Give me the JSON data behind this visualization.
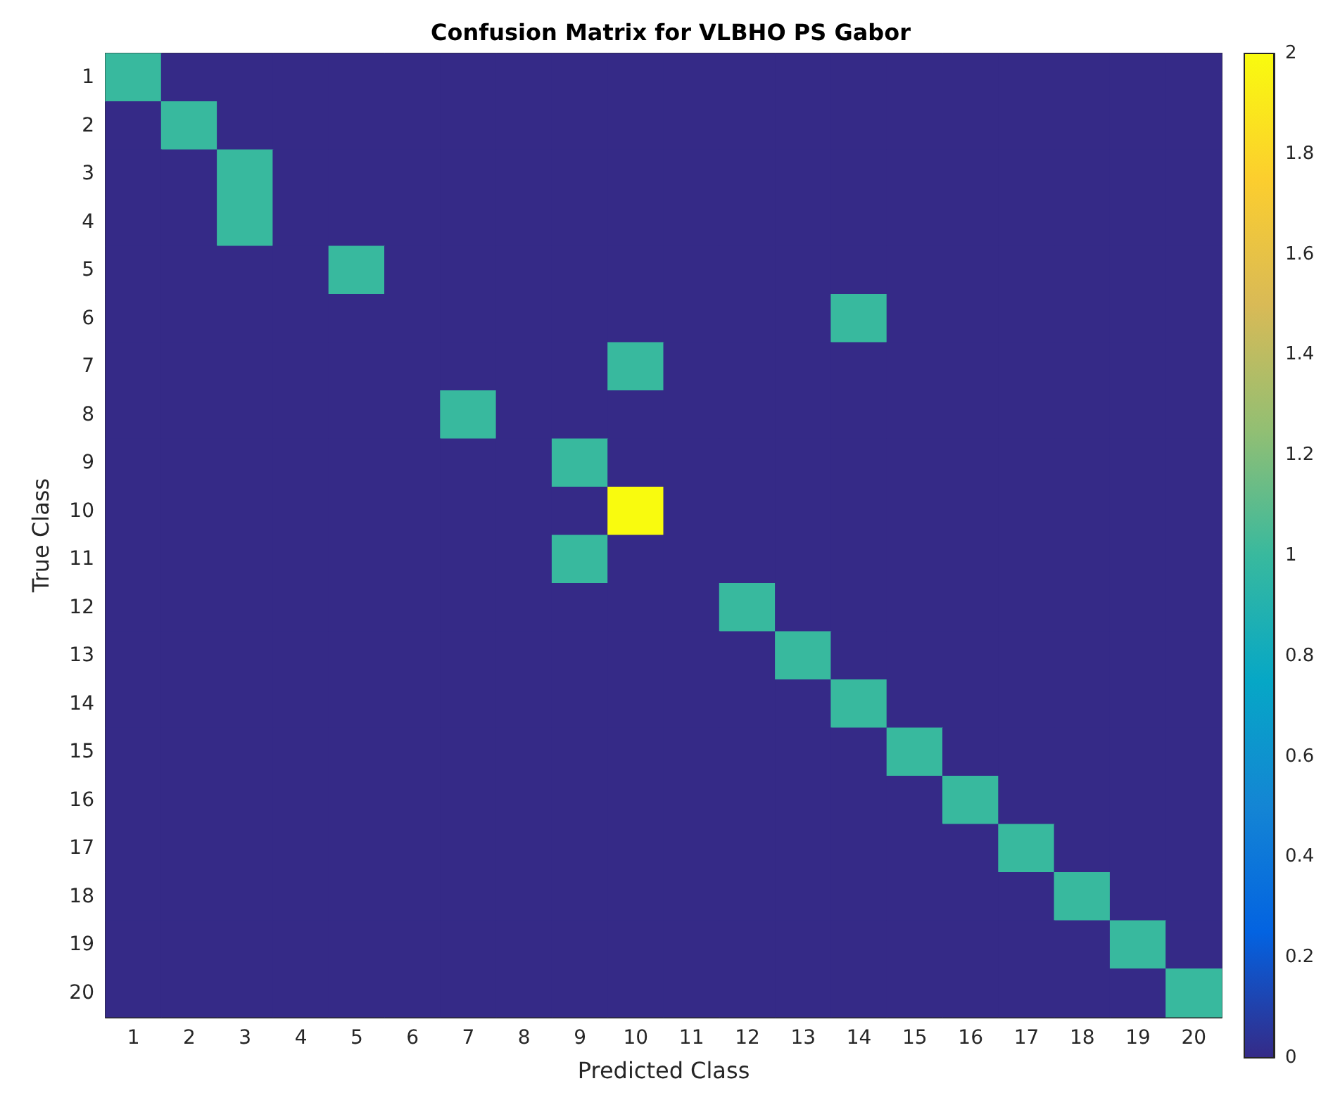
{
  "chart_data": {
    "type": "heatmap",
    "title": "Confusion Matrix for VLBHO PS Gabor",
    "xlabel": "Predicted Class",
    "ylabel": "True Class",
    "categories": [
      "1",
      "2",
      "3",
      "4",
      "5",
      "6",
      "7",
      "8",
      "9",
      "10",
      "11",
      "12",
      "13",
      "14",
      "15",
      "16",
      "17",
      "18",
      "19",
      "20"
    ],
    "y_categories": [
      "1",
      "2",
      "3",
      "4",
      "5",
      "6",
      "7",
      "8",
      "9",
      "10",
      "11",
      "12",
      "13",
      "14",
      "15",
      "16",
      "17",
      "18",
      "19",
      "20"
    ],
    "cells": [
      [
        1,
        0,
        0,
        0,
        0,
        0,
        0,
        0,
        0,
        0,
        0,
        0,
        0,
        0,
        0,
        0,
        0,
        0,
        0,
        0
      ],
      [
        0,
        1,
        0,
        0,
        0,
        0,
        0,
        0,
        0,
        0,
        0,
        0,
        0,
        0,
        0,
        0,
        0,
        0,
        0,
        0
      ],
      [
        0,
        0,
        1,
        0,
        0,
        0,
        0,
        0,
        0,
        0,
        0,
        0,
        0,
        0,
        0,
        0,
        0,
        0,
        0,
        0
      ],
      [
        0,
        0,
        1,
        0,
        0,
        0,
        0,
        0,
        0,
        0,
        0,
        0,
        0,
        0,
        0,
        0,
        0,
        0,
        0,
        0
      ],
      [
        0,
        0,
        0,
        0,
        1,
        0,
        0,
        0,
        0,
        0,
        0,
        0,
        0,
        0,
        0,
        0,
        0,
        0,
        0,
        0
      ],
      [
        0,
        0,
        0,
        0,
        0,
        0,
        0,
        0,
        0,
        0,
        0,
        0,
        0,
        1,
        0,
        0,
        0,
        0,
        0,
        0
      ],
      [
        0,
        0,
        0,
        0,
        0,
        0,
        0,
        0,
        0,
        1,
        0,
        0,
        0,
        0,
        0,
        0,
        0,
        0,
        0,
        0
      ],
      [
        0,
        0,
        0,
        0,
        0,
        0,
        1,
        0,
        0,
        0,
        0,
        0,
        0,
        0,
        0,
        0,
        0,
        0,
        0,
        0
      ],
      [
        0,
        0,
        0,
        0,
        0,
        0,
        0,
        0,
        1,
        0,
        0,
        0,
        0,
        0,
        0,
        0,
        0,
        0,
        0,
        0
      ],
      [
        0,
        0,
        0,
        0,
        0,
        0,
        0,
        0,
        0,
        2,
        0,
        0,
        0,
        0,
        0,
        0,
        0,
        0,
        0,
        0
      ],
      [
        0,
        0,
        0,
        0,
        0,
        0,
        0,
        0,
        1,
        0,
        0,
        0,
        0,
        0,
        0,
        0,
        0,
        0,
        0,
        0
      ],
      [
        0,
        0,
        0,
        0,
        0,
        0,
        0,
        0,
        0,
        0,
        0,
        1,
        0,
        0,
        0,
        0,
        0,
        0,
        0,
        0
      ],
      [
        0,
        0,
        0,
        0,
        0,
        0,
        0,
        0,
        0,
        0,
        0,
        0,
        1,
        0,
        0,
        0,
        0,
        0,
        0,
        0
      ],
      [
        0,
        0,
        0,
        0,
        0,
        0,
        0,
        0,
        0,
        0,
        0,
        0,
        0,
        1,
        0,
        0,
        0,
        0,
        0,
        0
      ],
      [
        0,
        0,
        0,
        0,
        0,
        0,
        0,
        0,
        0,
        0,
        0,
        0,
        0,
        0,
        1,
        0,
        0,
        0,
        0,
        0
      ],
      [
        0,
        0,
        0,
        0,
        0,
        0,
        0,
        0,
        0,
        0,
        0,
        0,
        0,
        0,
        0,
        1,
        0,
        0,
        0,
        0
      ],
      [
        0,
        0,
        0,
        0,
        0,
        0,
        0,
        0,
        0,
        0,
        0,
        0,
        0,
        0,
        0,
        0,
        1,
        0,
        0,
        0
      ],
      [
        0,
        0,
        0,
        0,
        0,
        0,
        0,
        0,
        0,
        0,
        0,
        0,
        0,
        0,
        0,
        0,
        0,
        1,
        0,
        0
      ],
      [
        0,
        0,
        0,
        0,
        0,
        0,
        0,
        0,
        0,
        0,
        0,
        0,
        0,
        0,
        0,
        0,
        0,
        0,
        1,
        0
      ],
      [
        0,
        0,
        0,
        0,
        0,
        0,
        0,
        0,
        0,
        0,
        0,
        0,
        0,
        0,
        0,
        0,
        0,
        0,
        0,
        1
      ]
    ],
    "clim": [
      0,
      2
    ],
    "cticks": [
      0,
      0.2,
      0.4,
      0.6,
      0.8,
      1,
      1.2,
      1.4,
      1.6,
      1.8,
      2
    ]
  }
}
